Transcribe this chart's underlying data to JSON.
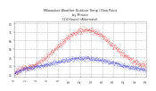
{
  "title_line1": "Milwaukee Weather Outdoor Temp / Dew Point",
  "title_line2": "by Minute",
  "title_line3": "(24 Hours) (Alternate)",
  "background_color": "#ffffff",
  "plot_bg_color": "#ffffff",
  "grid_color": "#aaaaaa",
  "temp_color": "#dd1111",
  "dew_color": "#1111cc",
  "title_color": "#222222",
  "label_color": "#333333",
  "ylim": [
    22,
    88
  ],
  "ytick_values": [
    25,
    35,
    45,
    55,
    65,
    75,
    85
  ],
  "hours": 24
}
